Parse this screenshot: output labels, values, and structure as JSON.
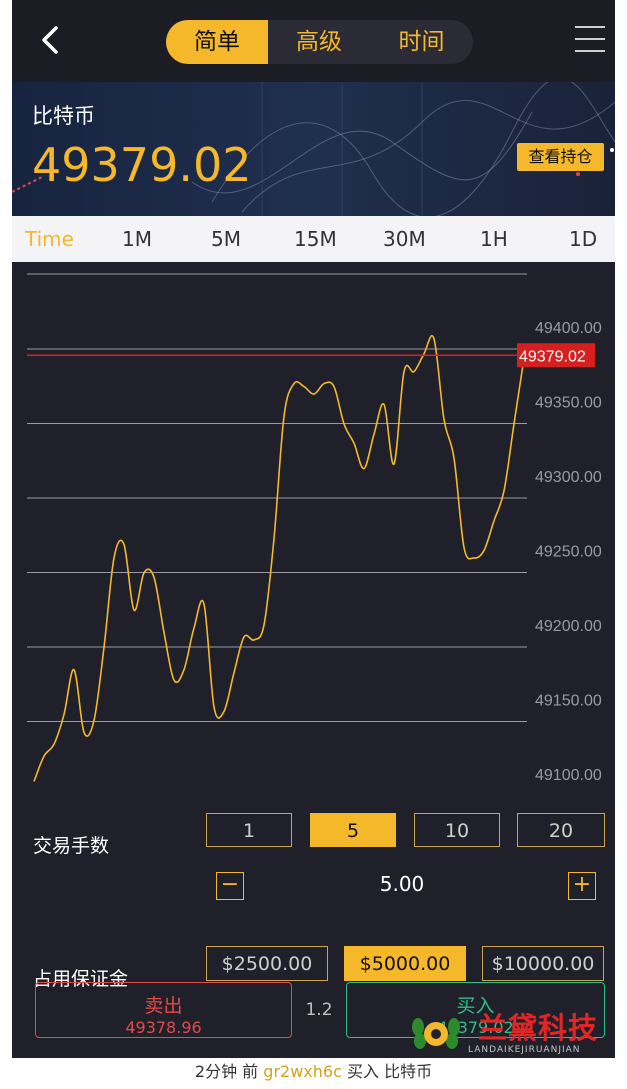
{
  "header": {
    "back_icon": "chevron-left-icon",
    "modes": [
      "简单",
      "高级",
      "时间"
    ],
    "active_mode": 0,
    "menu_icon": "hamburger-menu-icon"
  },
  "banner": {
    "coin_name": "比特币",
    "price": "49379.02",
    "holdings_button": "查看持仓"
  },
  "timeframes": [
    "Time",
    "1M",
    "5M",
    "15M",
    "30M",
    "1H",
    "1D"
  ],
  "active_timeframe": 0,
  "chart_data": {
    "type": "line",
    "y_ticks": [
      "49400.00",
      "49350.00",
      "49300.00",
      "49250.00",
      "49200.00",
      "49150.00",
      "49100.00"
    ],
    "ylim": [
      49095,
      49425
    ],
    "current_price": 49379.02,
    "current_price_label": "49379.02",
    "line_color": "#f5b82a",
    "marker_color": "#d62020",
    "values": [
      49095,
      49112,
      49120,
      49140,
      49170,
      49128,
      49136,
      49185,
      49245,
      49254,
      49210,
      49235,
      49232,
      49195,
      49163,
      49170,
      49198,
      49214,
      49145,
      49142,
      49168,
      49192,
      49190,
      49200,
      49258,
      49340,
      49362,
      49360,
      49355,
      49362,
      49360,
      49335,
      49322,
      49305,
      49328,
      49348,
      49308,
      49370,
      49370,
      49382,
      49392,
      49338,
      49312,
      49252,
      49245,
      49250,
      49270,
      49290,
      49335,
      49379
    ]
  },
  "trading": {
    "lots_label": "交易手数",
    "lots": [
      "1",
      "5",
      "10",
      "20"
    ],
    "active_lot": 1,
    "quantity": "5.00",
    "minus_label": "−",
    "plus_label": "+",
    "margin_label": "占用保证金",
    "margins": [
      "$2500.00",
      "$5000.00",
      "$10000.00"
    ],
    "active_margin": 1
  },
  "actions": {
    "sell_label": "卖出",
    "sell_price": "49378.96",
    "spread": "1.2",
    "buy_label": "买入",
    "buy_price": "49379.02"
  },
  "ticker": {
    "time": "2分钟 前",
    "user": "gr2wxh6c",
    "action": "买入",
    "asset": "比特币"
  },
  "watermark": {
    "name": "兰黛科技",
    "sub": "LANDAIKEJIRUANJIAN"
  }
}
